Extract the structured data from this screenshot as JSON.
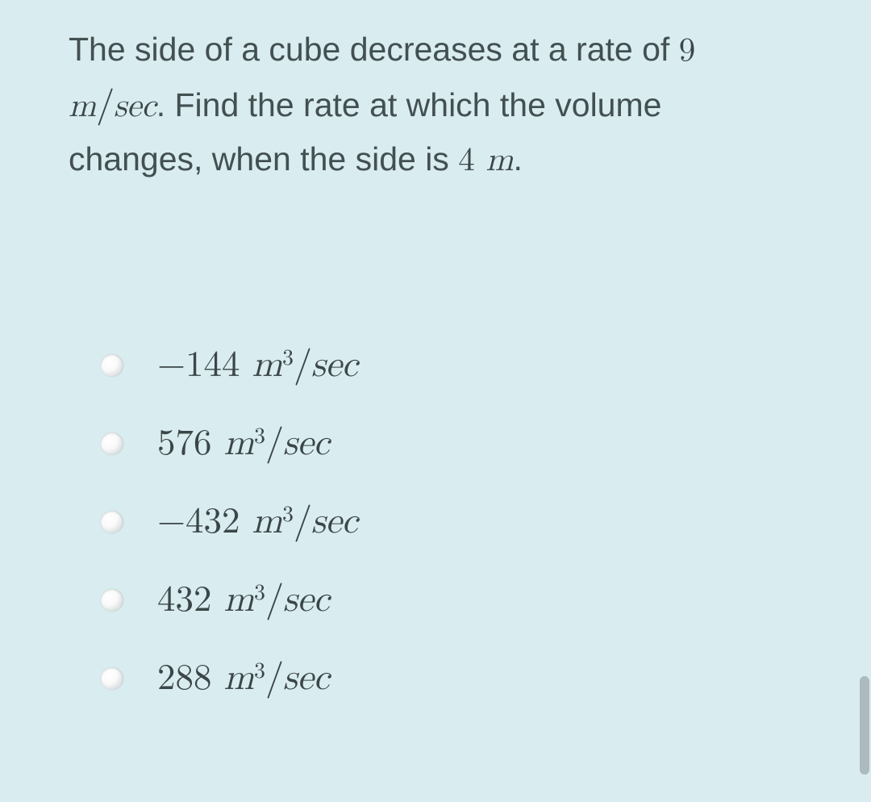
{
  "question": {
    "line1_pre": "The side of a cube decreases at a rate of ",
    "rate_value": "9",
    "rate_unit_m": "m",
    "rate_unit_sec": "sec",
    "line2_mid": ". Find the rate at which the volume",
    "line3_pre": "changes, when the side is ",
    "side_value": "4",
    "side_unit": " m",
    "period": "."
  },
  "options": [
    {
      "sign": "−",
      "value": "144",
      "unit_m": "m",
      "exp": "3",
      "unit_sec": "sec"
    },
    {
      "sign": "",
      "value": "576",
      "unit_m": "m",
      "exp": "3",
      "unit_sec": "sec"
    },
    {
      "sign": "−",
      "value": "432",
      "unit_m": "m",
      "exp": "3",
      "unit_sec": "sec"
    },
    {
      "sign": "",
      "value": "432",
      "unit_m": "m",
      "exp": "3",
      "unit_sec": "sec"
    },
    {
      "sign": "",
      "value": "288",
      "unit_m": "m",
      "exp": "3",
      "unit_sec": "sec"
    }
  ],
  "colors": {
    "background": "#d9ecef",
    "text": "#435052",
    "math": "#3b4648"
  }
}
